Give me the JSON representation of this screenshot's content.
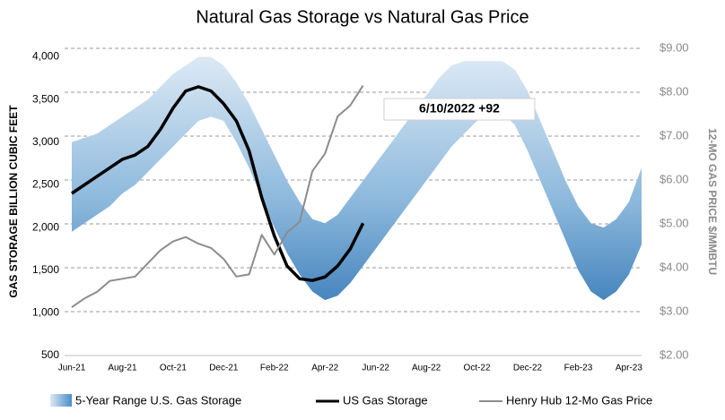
{
  "chart_data": {
    "type": "line",
    "title": "Natural Gas Storage vs Natural Gas Price",
    "y_label": "GAS STORAGE BILLION CUBIC FEET",
    "y2_label": "12-MO GAS PRICE $/MMBTU",
    "annotation": "6/10/2022  +92",
    "categories": [
      "Jun-21",
      null,
      null,
      null,
      "Aug-21",
      null,
      null,
      null,
      "Oct-21",
      null,
      null,
      null,
      "Dec-21",
      null,
      null,
      null,
      "Feb-22",
      null,
      null,
      null,
      "Apr-22",
      null,
      null,
      null,
      "Jun-22",
      null,
      null,
      null,
      "Aug-22",
      null,
      null,
      null,
      "Oct-22",
      null,
      null,
      null,
      "Dec-22",
      null,
      null,
      null,
      "Feb-23",
      null,
      null,
      null,
      "Apr-23",
      null
    ],
    "ylim": [
      500,
      4100
    ],
    "yticks": [
      500,
      {
        "value": 1000,
        "label": "1,000"
      },
      {
        "value": 1500,
        "label": "1,500"
      },
      {
        "value": 2000,
        "label": "2,000"
      },
      {
        "value": 2500,
        "label": "2,500"
      },
      {
        "value": 3000,
        "label": "3,000"
      },
      {
        "value": 3500,
        "label": "3,500"
      },
      {
        "value": 4000,
        "label": "4,000"
      }
    ],
    "y2lim": [
      2,
      9
    ],
    "y2ticks": [
      {
        "value": 2,
        "label": "$2.00"
      },
      {
        "value": 3,
        "label": "$3.00"
      },
      {
        "value": 4,
        "label": "$4.00"
      },
      {
        "value": 5,
        "label": "$5.00"
      },
      {
        "value": 6,
        "label": "$6.00"
      },
      {
        "value": 7,
        "label": "$7.00"
      },
      {
        "value": 8,
        "label": "$8.00"
      },
      {
        "value": 9,
        "label": "$9.00"
      }
    ],
    "grid": true,
    "series": [
      {
        "name": "5-Year Range U.S. Gas Storage",
        "kind": "range",
        "color": "#2e75b6",
        "upper": [
          3000,
          3050,
          3100,
          3200,
          3300,
          3400,
          3500,
          3650,
          3800,
          3900,
          4000,
          4000,
          3900,
          3700,
          3450,
          3150,
          2850,
          2550,
          2300,
          2100,
          2050,
          2150,
          2350,
          2550,
          2750,
          2950,
          3150,
          3350,
          3550,
          3750,
          3900,
          3950,
          3950,
          3950,
          3950,
          3850,
          3600,
          3250,
          2900,
          2550,
          2250,
          2050,
          2000,
          2100,
          2300,
          2700
        ],
        "lower": [
          1950,
          2050,
          2150,
          2250,
          2400,
          2500,
          2650,
          2800,
          2950,
          3100,
          3250,
          3300,
          3250,
          3000,
          2700,
          2350,
          2000,
          1700,
          1450,
          1250,
          1150,
          1200,
          1350,
          1550,
          1750,
          1950,
          2150,
          2350,
          2550,
          2750,
          2950,
          3100,
          3250,
          3350,
          3350,
          3200,
          2900,
          2550,
          2200,
          1850,
          1500,
          1250,
          1150,
          1250,
          1450,
          1800
        ]
      },
      {
        "name": "US Gas Storage",
        "color": "#000000",
        "values": [
          2400,
          2500,
          2600,
          2700,
          2800,
          2850,
          2950,
          3150,
          3400,
          3600,
          3650,
          3600,
          3450,
          3250,
          2900,
          2350,
          1900,
          1550,
          1400,
          1380,
          1420,
          1550,
          1750,
          2050,
          null,
          null,
          null,
          null,
          null,
          null,
          null,
          null,
          null,
          null,
          null,
          null,
          null,
          null,
          null,
          null,
          null,
          null,
          null,
          null,
          null,
          null
        ]
      },
      {
        "name": "Henry Hub 12-Mo Gas Price",
        "color": "#8c8c8c",
        "axis": "y2",
        "values": [
          3.1,
          3.3,
          3.45,
          3.7,
          3.75,
          3.8,
          4.1,
          4.4,
          4.6,
          4.7,
          4.55,
          4.45,
          4.2,
          3.8,
          3.85,
          4.75,
          4.3,
          4.8,
          5.05,
          6.2,
          6.6,
          7.45,
          7.7,
          8.15,
          null,
          null,
          null,
          null,
          null,
          null,
          null,
          null,
          null,
          null,
          null,
          null,
          null,
          null,
          null,
          null,
          null,
          null,
          null,
          null,
          null,
          null
        ]
      }
    ]
  }
}
